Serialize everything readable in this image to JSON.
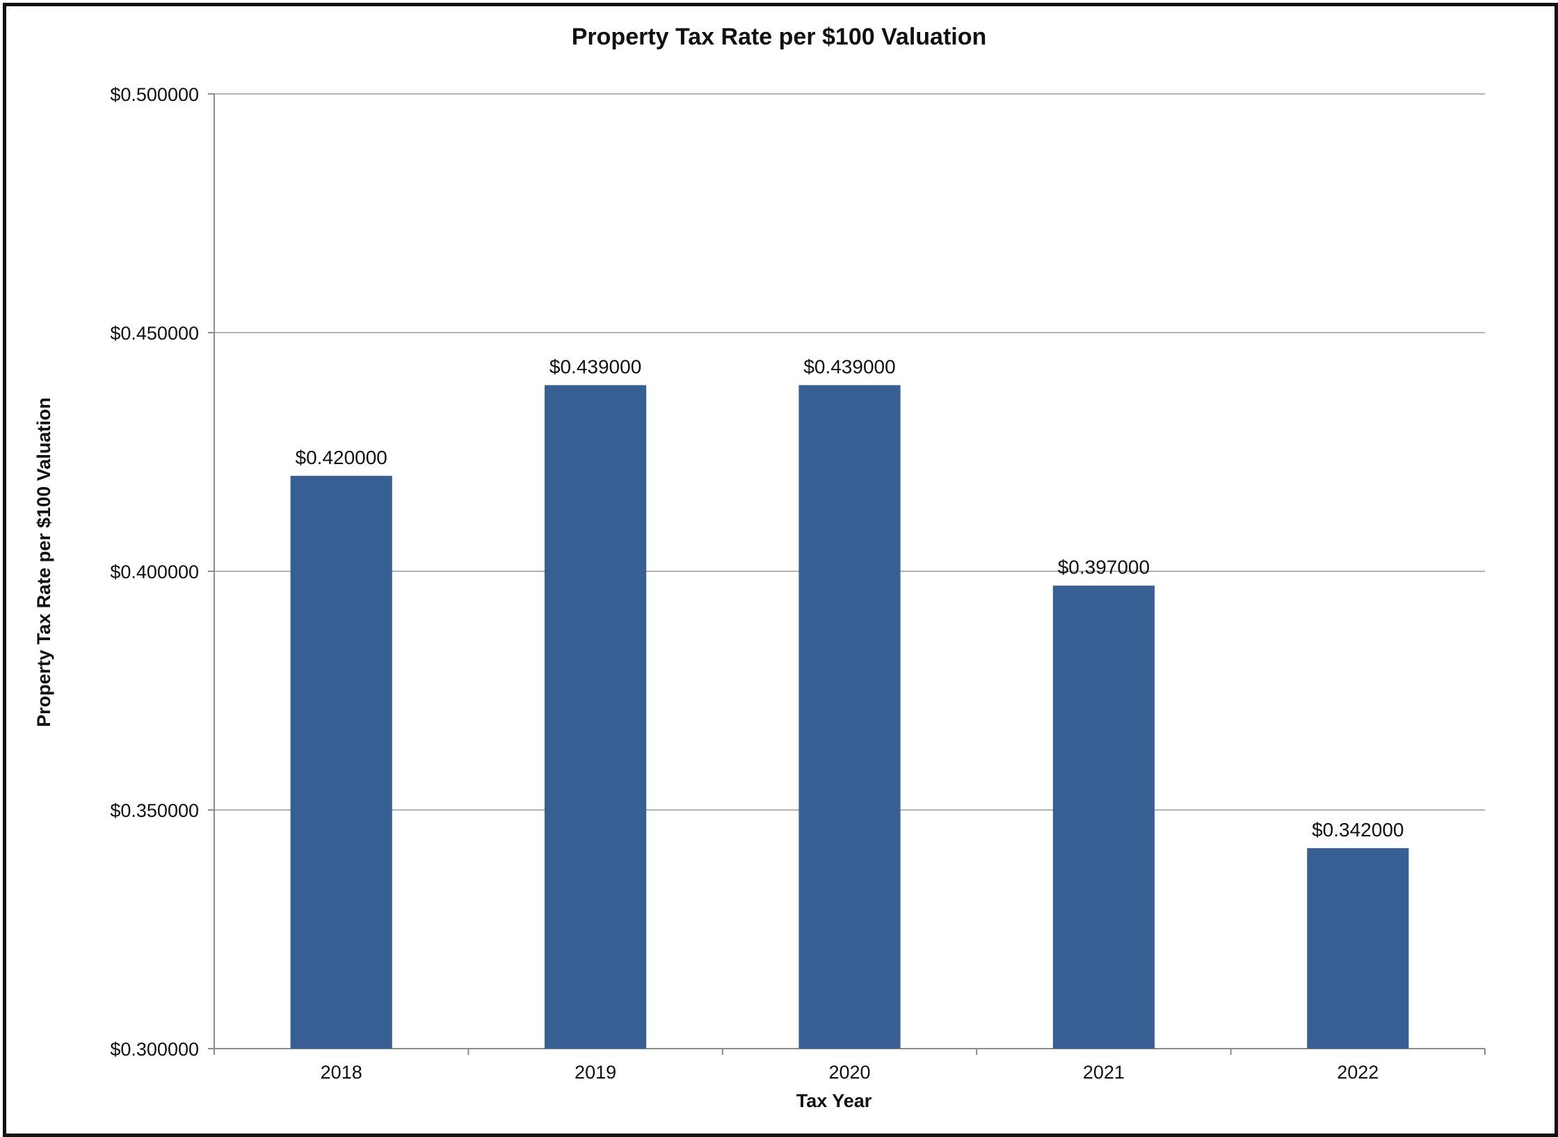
{
  "chart_data": {
    "type": "bar",
    "title": "Property Tax Rate per $100 Valuation",
    "xlabel": "Tax Year",
    "ylabel": "Property Tax Rate per $100 Valuation",
    "categories": [
      "2018",
      "2019",
      "2020",
      "2021",
      "2022"
    ],
    "values": [
      0.42,
      0.439,
      0.439,
      0.397,
      0.342
    ],
    "data_labels": [
      "$0.420000",
      "$0.439000",
      "$0.439000",
      "$0.397000",
      "$0.342000"
    ],
    "ylim": [
      0.3,
      0.5
    ],
    "y_ticks": [
      0.3,
      0.35,
      0.4,
      0.45,
      0.5
    ],
    "y_tick_labels": [
      "$0.300000",
      "$0.350000",
      "$0.400000",
      "$0.450000",
      "$0.500000"
    ],
    "grid": true,
    "legend": "none",
    "bar_color": "#385F93"
  }
}
